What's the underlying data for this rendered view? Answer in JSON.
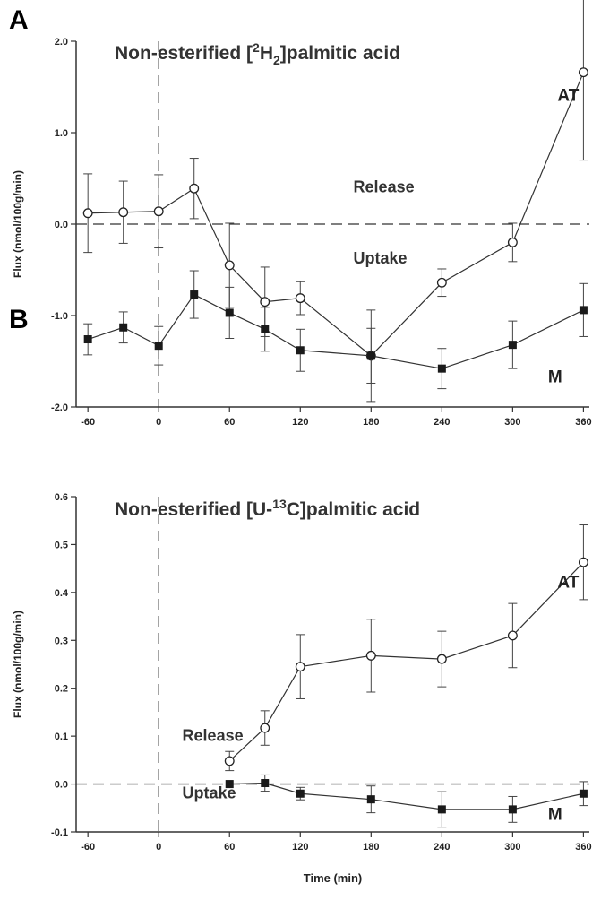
{
  "chart_data": [
    {
      "panel": "A",
      "type": "line",
      "title_parts": [
        "Non-esterified [",
        "2",
        "H",
        "2",
        "]palmitic acid"
      ],
      "ylabel": "Flux (nmol/100g/min)",
      "xlabel": "",
      "xlim": [
        -70,
        365
      ],
      "ylim": [
        -2.0,
        2.0
      ],
      "xticks": [
        -60,
        0,
        60,
        120,
        180,
        240,
        300,
        360
      ],
      "yticks": [
        2.0,
        1.0,
        0.0,
        -1.0,
        -2.0
      ],
      "ytick_labels": [
        "2.0",
        "1.0",
        "0.0",
        "-1.0",
        "-2.0"
      ],
      "zero_line": true,
      "vline_x": 0,
      "annotations": [
        {
          "text": "Release",
          "x": 165,
          "y": 0.35
        },
        {
          "text": "Uptake",
          "x": 165,
          "y": -0.43
        }
      ],
      "series": [
        {
          "name": "AT",
          "marker": "open-circle",
          "x": [
            -60,
            -30,
            0,
            30,
            60,
            90,
            120,
            180,
            240,
            300,
            360
          ],
          "y": [
            0.12,
            0.13,
            0.14,
            0.39,
            -0.45,
            -0.85,
            -0.81,
            -1.44,
            -0.64,
            -0.2,
            1.66
          ],
          "err": [
            0.43,
            0.34,
            0.4,
            0.33,
            0.46,
            0.38,
            0.18,
            0.5,
            0.15,
            0.21,
            0.96
          ],
          "label_pos": {
            "x": 338,
            "y": 1.35
          }
        },
        {
          "name": "M",
          "marker": "filled-square",
          "x": [
            -60,
            -30,
            0,
            30,
            60,
            90,
            120,
            180,
            240,
            300,
            360
          ],
          "y": [
            -1.26,
            -1.13,
            -1.33,
            -0.77,
            -0.97,
            -1.15,
            -1.38,
            -1.44,
            -1.58,
            -1.32,
            -0.94
          ],
          "err": [
            0.17,
            0.17,
            0.21,
            0.26,
            0.28,
            0.24,
            0.23,
            0.3,
            0.22,
            0.26,
            0.29
          ],
          "label_pos": {
            "x": 330,
            "y": -1.73
          }
        }
      ]
    },
    {
      "panel": "B",
      "type": "line",
      "title_parts": [
        "Non-esterified [U-",
        "13",
        "C]palmitic acid"
      ],
      "ylabel": "Flux (nmol/100g/min)",
      "xlabel": "Time (min)",
      "xlim": [
        -70,
        365
      ],
      "ylim": [
        -0.1,
        0.6
      ],
      "xticks": [
        -60,
        0,
        60,
        120,
        180,
        240,
        300,
        360
      ],
      "yticks": [
        0.6,
        0.5,
        0.4,
        0.3,
        0.2,
        0.1,
        0.0,
        -0.1
      ],
      "ytick_labels": [
        "0.6",
        "0.5",
        "0.4",
        "0.3",
        "0.2",
        "0.1",
        "0.0",
        "-0.1"
      ],
      "zero_line": true,
      "vline_x": 0,
      "annotations": [
        {
          "text": "Release",
          "x": 20,
          "y": 0.09
        },
        {
          "text": "Uptake",
          "x": 20,
          "y": -0.03
        }
      ],
      "series": [
        {
          "name": "AT",
          "marker": "open-circle",
          "x": [
            60,
            90,
            120,
            180,
            240,
            300,
            360
          ],
          "y": [
            0.048,
            0.117,
            0.245,
            0.268,
            0.261,
            0.31,
            0.463
          ],
          "err": [
            0.02,
            0.036,
            0.067,
            0.076,
            0.058,
            0.067,
            0.078
          ],
          "label_pos": {
            "x": 338,
            "y": 0.41
          }
        },
        {
          "name": "M",
          "marker": "filled-square",
          "x": [
            60,
            90,
            120,
            180,
            240,
            300,
            360
          ],
          "y": [
            0.0,
            0.002,
            -0.02,
            -0.032,
            -0.053,
            -0.053,
            -0.02
          ],
          "err": [
            0.0,
            0.017,
            0.013,
            0.028,
            0.037,
            0.027,
            0.025
          ],
          "label_pos": {
            "x": 330,
            "y": -0.075
          }
        }
      ]
    }
  ]
}
